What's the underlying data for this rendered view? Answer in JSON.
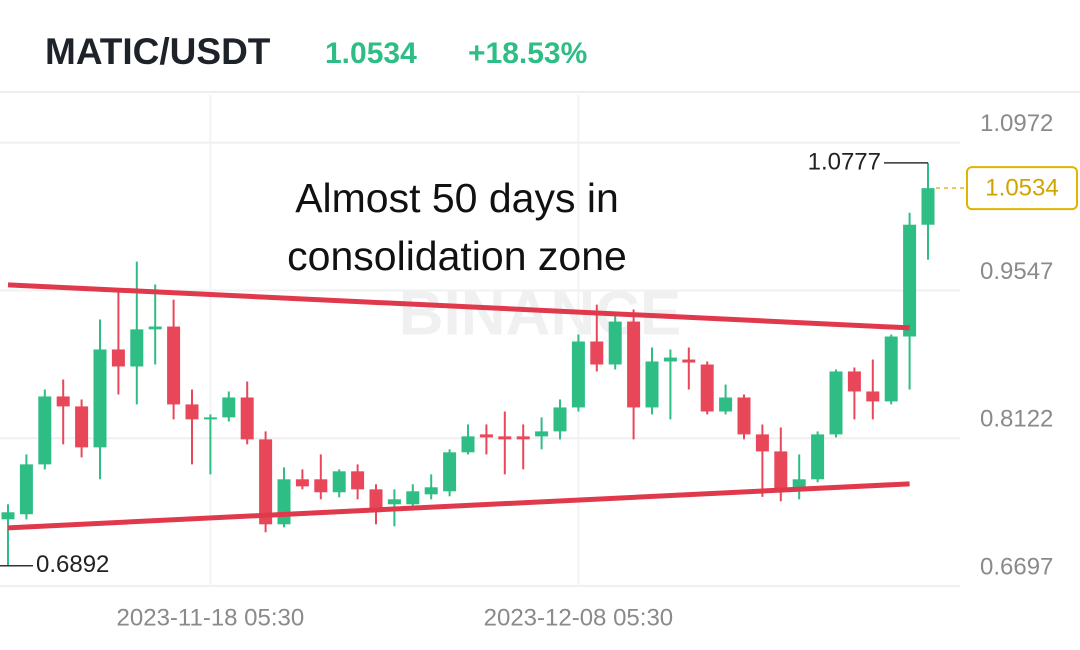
{
  "chart_data": {
    "type": "candlestick",
    "title": "MATIC/USDT",
    "last_price": 1.0534,
    "change": "+18.53%",
    "annotation": [
      "Almost 50 days in",
      "consolidation zone"
    ],
    "watermark": "BINANCE",
    "high_marker": 1.0777,
    "low_marker": 0.6892,
    "up_color": "#2ebd85",
    "down_color": "#e8475a",
    "x": [
      "2023-11-07 05:30",
      "2023-11-08 05:30",
      "2023-11-09 05:30",
      "2023-11-10 05:30",
      "2023-11-11 05:30",
      "2023-11-12 05:30",
      "2023-11-13 05:30",
      "2023-11-14 05:30",
      "2023-11-15 05:30",
      "2023-11-16 05:30",
      "2023-11-17 05:30",
      "2023-11-18 05:30",
      "2023-11-19 05:30",
      "2023-11-20 05:30",
      "2023-11-21 05:30",
      "2023-11-22 05:30",
      "2023-11-23 05:30",
      "2023-11-24 05:30",
      "2023-11-25 05:30",
      "2023-11-26 05:30",
      "2023-11-27 05:30",
      "2023-11-28 05:30",
      "2023-11-29 05:30",
      "2023-11-30 05:30",
      "2023-12-01 05:30",
      "2023-12-02 05:30",
      "2023-12-03 05:30",
      "2023-12-04 05:30",
      "2023-12-05 05:30",
      "2023-12-06 05:30",
      "2023-12-07 05:30",
      "2023-12-08 05:30",
      "2023-12-09 05:30",
      "2023-12-10 05:30",
      "2023-12-11 05:30",
      "2023-12-12 05:30",
      "2023-12-13 05:30",
      "2023-12-14 05:30",
      "2023-12-15 05:30",
      "2023-12-16 05:30",
      "2023-12-17 05:30",
      "2023-12-18 05:30",
      "2023-12-19 05:30",
      "2023-12-20 05:30",
      "2023-12-21 05:30",
      "2023-12-22 05:30",
      "2023-12-23 05:30",
      "2023-12-24 05:30",
      "2023-12-25 05:30",
      "2023-12-26 05:30",
      "2023-12-27 05:30"
    ],
    "open": [
      0.734,
      0.7389,
      0.787,
      0.8525,
      0.8429,
      0.8034,
      0.8978,
      0.8814,
      0.9172,
      0.9199,
      0.8448,
      0.8304,
      0.8323,
      0.8515,
      0.8111,
      0.7292,
      0.7726,
      0.7726,
      0.7601,
      0.7803,
      0.7629,
      0.7485,
      0.7485,
      0.7581,
      0.761,
      0.7986,
      0.8159,
      0.814,
      0.814,
      0.814,
      0.8188,
      0.8419,
      0.9055,
      0.8833,
      0.9247,
      0.8419,
      0.8862,
      0.8881,
      0.8833,
      0.838,
      0.8515,
      0.8159,
      0.7995,
      0.7629,
      0.7726,
      0.8159,
      0.8766,
      0.8573,
      0.8477,
      0.9103,
      1.0181
    ],
    "high": [
      0.7485,
      0.7966,
      0.8592,
      0.8689,
      0.8496,
      0.9267,
      0.9555,
      0.9825,
      0.9604,
      0.9459,
      0.8592,
      0.8352,
      0.8573,
      0.8669,
      0.8188,
      0.7841,
      0.7822,
      0.7966,
      0.7822,
      0.787,
      0.7678,
      0.7629,
      0.7678,
      0.7774,
      0.8015,
      0.8255,
      0.8255,
      0.838,
      0.8255,
      0.8323,
      0.8496,
      0.9122,
      0.9411,
      0.9315,
      0.9363,
      0.8997,
      0.8978,
      0.8997,
      0.8862,
      0.864,
      0.8544,
      0.8255,
      0.8226,
      0.7966,
      0.8188,
      0.8785,
      0.8804,
      0.8881,
      0.9122,
      1.0297,
      1.0777
    ],
    "low": [
      0.6892,
      0.734,
      0.7822,
      0.8063,
      0.7937,
      0.7726,
      0.8544,
      0.8448,
      0.8833,
      0.8304,
      0.787,
      0.7774,
      0.8284,
      0.8063,
      0.7215,
      0.7263,
      0.7629,
      0.7533,
      0.7552,
      0.7533,
      0.7292,
      0.7273,
      0.7437,
      0.7533,
      0.7562,
      0.7966,
      0.7966,
      0.7774,
      0.7822,
      0.8015,
      0.8111,
      0.838,
      0.8766,
      0.8785,
      0.8111,
      0.8352,
      0.8304,
      0.8592,
      0.8352,
      0.8352,
      0.8111,
      0.7556,
      0.7514,
      0.7533,
      0.7697,
      0.813,
      0.8304,
      0.8304,
      0.8448,
      0.8592,
      0.9844
    ],
    "close": [
      0.7408,
      0.787,
      0.8525,
      0.8429,
      0.8034,
      0.8978,
      0.8814,
      0.9172,
      0.9199,
      0.8448,
      0.8304,
      0.8323,
      0.8515,
      0.8111,
      0.7292,
      0.7726,
      0.7658,
      0.7601,
      0.7803,
      0.7629,
      0.7437,
      0.7533,
      0.761,
      0.7649,
      0.7986,
      0.814,
      0.813,
      0.8111,
      0.8111,
      0.8188,
      0.8419,
      0.9055,
      0.8833,
      0.9247,
      0.8419,
      0.8862,
      0.89,
      0.8852,
      0.838,
      0.8515,
      0.8159,
      0.7995,
      0.761,
      0.7726,
      0.8159,
      0.8766,
      0.8573,
      0.8477,
      0.9103,
      1.0181,
      1.0534
    ],
    "trendlines": [
      {
        "x": [
          "2023-11-07 05:30",
          "2023-12-26 05:30"
        ],
        "y": [
          0.9601,
          0.9186
        ],
        "color": "#e0394c"
      },
      {
        "x": [
          "2023-11-07 05:30",
          "2023-12-26 05:30"
        ],
        "y": [
          0.7258,
          0.7682
        ],
        "color": "#e0394c"
      }
    ],
    "ylim": [
      0.6697,
      1.1432
    ],
    "yticks": [
      1.0972,
      0.9547,
      0.8122,
      0.6697
    ],
    "xticks": [
      "2023-11-18 05:30",
      "2023-12-08 05:30"
    ],
    "grid": true
  }
}
